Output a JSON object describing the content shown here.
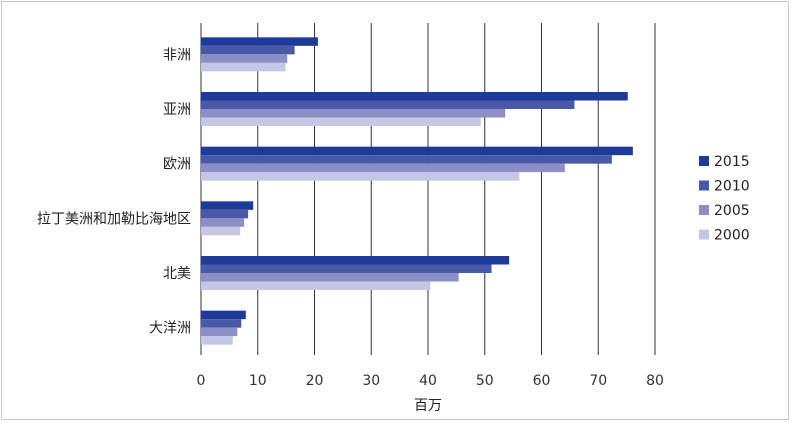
{
  "chart_data": {
    "type": "bar",
    "orientation": "horizontal",
    "title": "",
    "xlabel": "百万",
    "ylabel": "",
    "xlim": [
      0,
      80
    ],
    "xticks": [
      0,
      10,
      20,
      30,
      40,
      50,
      60,
      70,
      80
    ],
    "grid": "vertical",
    "legend_position": "right",
    "categories": [
      "非洲",
      "亚洲",
      "欧洲",
      "拉丁美洲和加勒比海地区",
      "北美",
      "大洋洲"
    ],
    "series": [
      {
        "name": "2015",
        "color": "#1f3b99",
        "values": [
          20.6,
          75.2,
          76.1,
          9.2,
          54.3,
          7.9
        ]
      },
      {
        "name": "2010",
        "color": "#4a58a8",
        "values": [
          16.5,
          65.8,
          72.4,
          8.3,
          51.2,
          7.1
        ]
      },
      {
        "name": "2005",
        "color": "#8b8fc6",
        "values": [
          15.2,
          53.6,
          64.1,
          7.6,
          45.4,
          6.4
        ]
      },
      {
        "name": "2000",
        "color": "#c5c7e6",
        "values": [
          14.9,
          49.3,
          56.1,
          6.9,
          40.4,
          5.6
        ]
      }
    ]
  }
}
